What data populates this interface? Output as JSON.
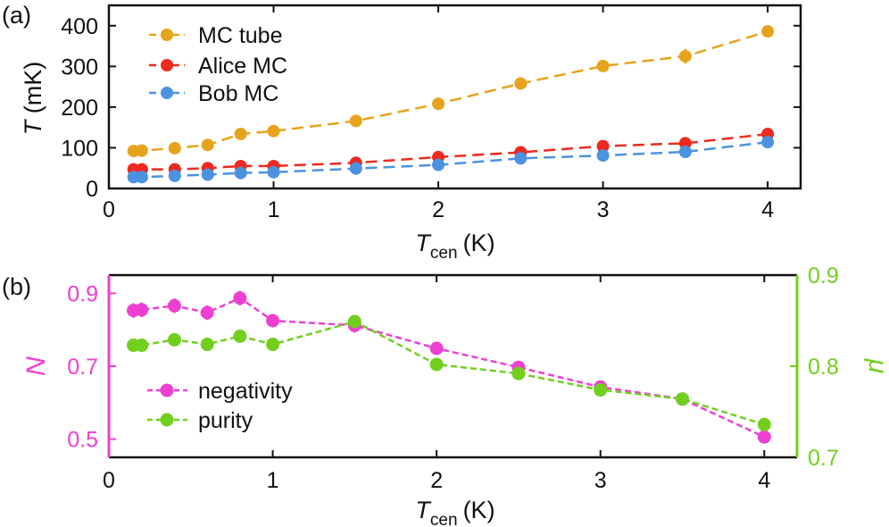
{
  "chart_data": [
    {
      "panel_label": "(a)",
      "type": "line",
      "xlabel": {
        "main": "T",
        "sub": "cen",
        "unit": "(K)"
      },
      "ylabel": {
        "main": "T",
        "unit": "(mK)"
      },
      "xlim": [
        0,
        4.2
      ],
      "ylim": [
        0,
        450
      ],
      "xticks": [
        0,
        1,
        2,
        3,
        4
      ],
      "yticks": [
        0,
        100,
        200,
        300,
        400
      ],
      "grid": false,
      "legend_position": "top-left",
      "series": [
        {
          "name": "MC tube",
          "color": "#e6a31c",
          "x": [
            0.15,
            0.2,
            0.4,
            0.6,
            0.8,
            1.0,
            1.5,
            2.0,
            2.5,
            3.0,
            3.5,
            4.0
          ],
          "y": [
            92,
            93,
            99,
            107,
            134,
            141,
            166,
            208,
            258,
            301,
            325,
            386
          ],
          "err": [
            4,
            4,
            5,
            6,
            7,
            6,
            8,
            13,
            8,
            6,
            18,
            8
          ]
        },
        {
          "name": "Alice MC",
          "color": "#ee2a1f",
          "x": [
            0.15,
            0.2,
            0.4,
            0.6,
            0.8,
            1.0,
            1.5,
            2.0,
            2.5,
            3.0,
            3.5,
            4.0
          ],
          "y": [
            47,
            47,
            47,
            50,
            55,
            55,
            63,
            77,
            89,
            104,
            111,
            134
          ],
          "err": [
            3,
            3,
            3,
            3,
            3,
            3,
            3,
            4,
            4,
            4,
            5,
            5
          ]
        },
        {
          "name": "Bob MC",
          "color": "#4b92e0",
          "x": [
            0.15,
            0.2,
            0.4,
            0.6,
            0.8,
            1.0,
            1.5,
            2.0,
            2.5,
            3.0,
            3.5,
            4.0
          ],
          "y": [
            28,
            28,
            31,
            34,
            38,
            40,
            49,
            58,
            74,
            81,
            90,
            114
          ],
          "err": [
            3,
            3,
            3,
            3,
            3,
            3,
            3,
            4,
            4,
            4,
            4,
            5
          ]
        }
      ]
    },
    {
      "panel_label": "(b)",
      "type": "line",
      "xlabel": {
        "main": "T",
        "sub": "cen",
        "unit": "(K)"
      },
      "ylabel_left": {
        "main": "N"
      },
      "ylabel_right": {
        "main": "μ"
      },
      "xlim": [
        0,
        4.2
      ],
      "ylim_left": [
        0.45,
        0.95
      ],
      "ylim_right": [
        0.7,
        0.9
      ],
      "xticks": [
        0,
        1,
        2,
        3,
        4
      ],
      "yticks_left": [
        0.5,
        0.7,
        0.9
      ],
      "yticks_right": [
        0.7,
        0.8,
        0.9
      ],
      "grid": false,
      "legend_position": "bottom-left",
      "left_axis_color": "#ee3fd3",
      "right_axis_color": "#72cf1e",
      "series": [
        {
          "name": "negativity",
          "axis": "left",
          "color": "#ee3fd3",
          "x": [
            0.15,
            0.2,
            0.4,
            0.6,
            0.8,
            1.0,
            1.5,
            2.0,
            2.5,
            3.0,
            3.5,
            4.0
          ],
          "y": [
            0.853,
            0.855,
            0.866,
            0.847,
            0.887,
            0.825,
            0.812,
            0.749,
            0.697,
            0.643,
            0.61,
            0.506
          ],
          "err": [
            0.02,
            0.02,
            0.02,
            0.02,
            0.02,
            0.015,
            0.02,
            0.015,
            0.012,
            0.01,
            0.01,
            0.012
          ]
        },
        {
          "name": "purity",
          "axis": "right",
          "color": "#72cf1e",
          "x": [
            0.15,
            0.2,
            0.4,
            0.6,
            0.8,
            1.0,
            1.5,
            2.0,
            2.5,
            3.0,
            3.5,
            4.0
          ],
          "y": [
            0.823,
            0.823,
            0.829,
            0.824,
            0.833,
            0.824,
            0.849,
            0.802,
            0.792,
            0.774,
            0.764,
            0.736
          ],
          "err": [
            0.006,
            0.006,
            0.006,
            0.006,
            0.006,
            0.006,
            0.006,
            0.006,
            0.006,
            0.005,
            0.004,
            0.005
          ]
        }
      ]
    }
  ]
}
